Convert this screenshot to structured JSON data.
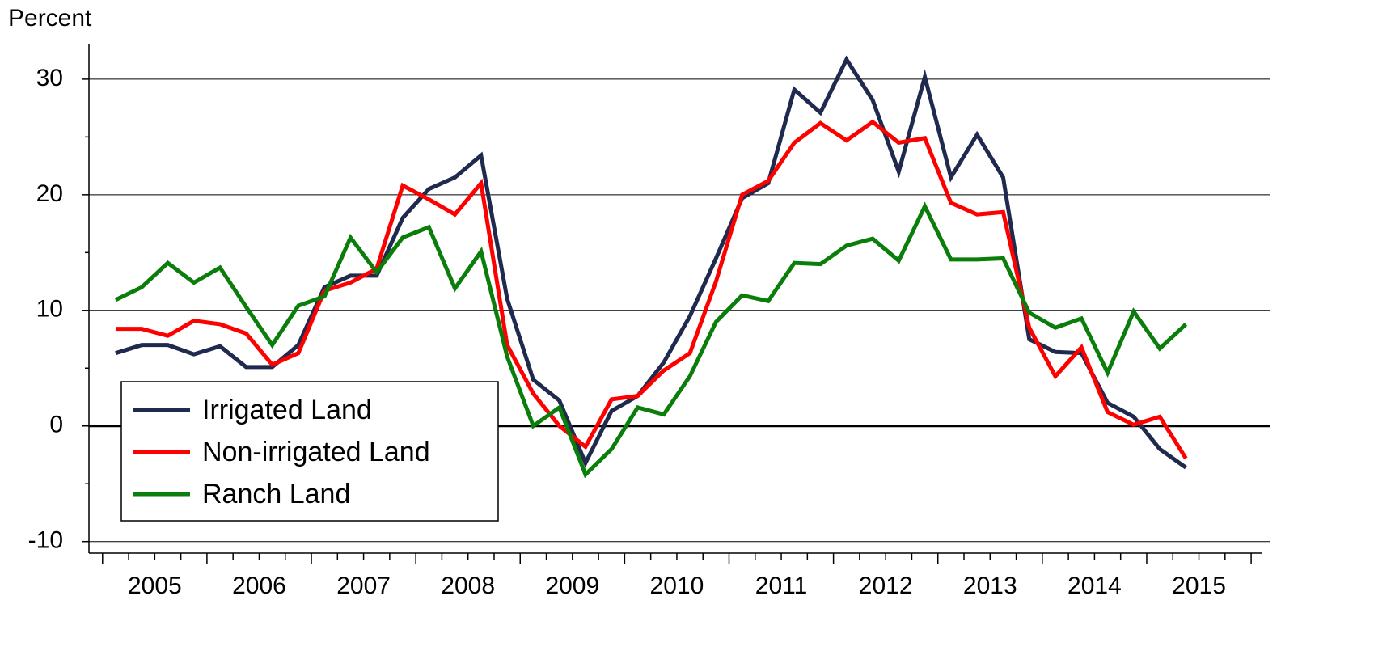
{
  "chart_data": {
    "type": "line",
    "title": "Percent",
    "x": [
      2005.125,
      2005.375,
      2005.625,
      2005.875,
      2006.125,
      2006.375,
      2006.625,
      2006.875,
      2007.125,
      2007.375,
      2007.625,
      2007.875,
      2008.125,
      2008.375,
      2008.625,
      2008.875,
      2009.125,
      2009.375,
      2009.625,
      2009.875,
      2010.125,
      2010.375,
      2010.625,
      2010.875,
      2011.125,
      2011.375,
      2011.625,
      2011.875,
      2012.125,
      2012.375,
      2012.625,
      2012.875,
      2013.125,
      2013.375,
      2013.625,
      2013.875,
      2014.125,
      2014.375,
      2014.625,
      2014.875,
      2015.125,
      2015.375
    ],
    "series": [
      {
        "name": "Irrigated Land",
        "color": "#1f2a4e",
        "values": [
          6.3,
          7.0,
          7.0,
          6.2,
          6.9,
          5.1,
          5.1,
          7.0,
          12.0,
          13.0,
          13.0,
          18.0,
          20.5,
          21.5,
          23.4,
          11.0,
          4.0,
          2.2,
          -3.2,
          1.3,
          2.6,
          5.5,
          9.5,
          14.5,
          19.7,
          21.0,
          29.1,
          27.1,
          31.7,
          28.2,
          22.0,
          30.2,
          21.5,
          25.2,
          21.5,
          7.5,
          6.4,
          6.3,
          2.0,
          0.8,
          -2.0,
          -3.6
        ]
      },
      {
        "name": "Non-irrigated Land",
        "color": "#ff0000",
        "values": [
          8.4,
          8.4,
          7.8,
          9.1,
          8.8,
          8.0,
          5.3,
          6.3,
          11.7,
          12.4,
          13.6,
          20.8,
          19.6,
          18.3,
          21.0,
          7.0,
          2.8,
          0.0,
          -1.8,
          2.3,
          2.6,
          4.8,
          6.3,
          12.5,
          20.0,
          21.2,
          24.5,
          26.2,
          24.7,
          26.3,
          24.5,
          24.9,
          19.3,
          18.3,
          18.5,
          8.5,
          4.3,
          6.8,
          1.2,
          0.1,
          0.8,
          -2.8
        ]
      },
      {
        "name": "Ranch Land",
        "color": "#0a7d0a",
        "values": [
          10.9,
          12.0,
          14.1,
          12.4,
          13.7,
          10.3,
          7.0,
          10.4,
          11.2,
          16.3,
          13.3,
          16.3,
          17.2,
          11.9,
          15.1,
          6.0,
          0.0,
          1.6,
          -4.2,
          -2.0,
          1.6,
          1.0,
          4.3,
          9.0,
          11.3,
          10.8,
          14.1,
          14.0,
          15.6,
          16.2,
          14.3,
          19.0,
          14.4,
          14.4,
          14.5,
          9.8,
          8.5,
          9.3,
          4.6,
          9.9,
          6.7,
          8.8
        ]
      }
    ],
    "xlim": [
      2004.87,
      2016.1
    ],
    "xticks": [
      {
        "value": 2005.5,
        "label": "2005"
      },
      {
        "value": 2006.5,
        "label": "2006"
      },
      {
        "value": 2007.5,
        "label": "2007"
      },
      {
        "value": 2008.5,
        "label": "2008"
      },
      {
        "value": 2009.5,
        "label": "2009"
      },
      {
        "value": 2010.5,
        "label": "2010"
      },
      {
        "value": 2011.5,
        "label": "2011"
      },
      {
        "value": 2012.5,
        "label": "2012"
      },
      {
        "value": 2013.5,
        "label": "2013"
      },
      {
        "value": 2014.5,
        "label": "2014"
      },
      {
        "value": 2015.5,
        "label": "2015"
      }
    ],
    "ylim": [
      -11,
      33
    ],
    "yticks": [
      -10,
      0,
      10,
      20,
      30
    ],
    "grid": true,
    "legend": "lower left"
  }
}
